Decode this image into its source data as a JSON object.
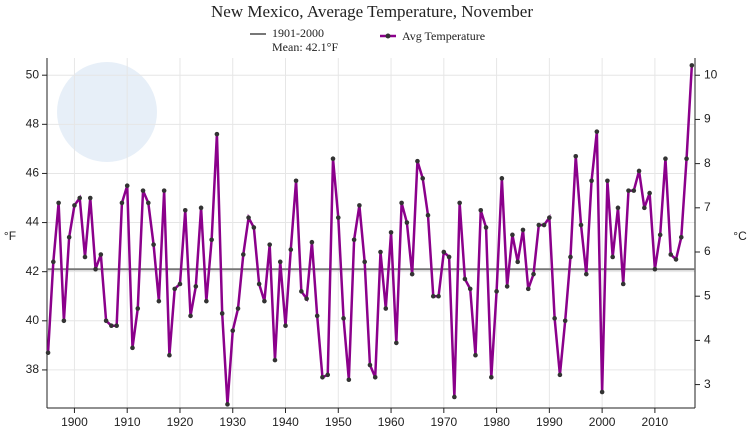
{
  "chart_data": {
    "type": "line",
    "title": "New Mexico, Average Temperature, November",
    "ylabel": "°F",
    "y2label": "°C",
    "x": [
      1895,
      1896,
      1897,
      1898,
      1899,
      1900,
      1901,
      1902,
      1903,
      1904,
      1905,
      1906,
      1907,
      1908,
      1909,
      1910,
      1911,
      1912,
      1913,
      1914,
      1915,
      1916,
      1917,
      1918,
      1919,
      1920,
      1921,
      1922,
      1923,
      1924,
      1925,
      1926,
      1927,
      1928,
      1929,
      1930,
      1931,
      1932,
      1933,
      1934,
      1935,
      1936,
      1937,
      1938,
      1939,
      1940,
      1941,
      1942,
      1943,
      1944,
      1945,
      1946,
      1947,
      1948,
      1949,
      1950,
      1951,
      1952,
      1953,
      1954,
      1955,
      1956,
      1957,
      1958,
      1959,
      1960,
      1961,
      1962,
      1963,
      1964,
      1965,
      1966,
      1967,
      1968,
      1969,
      1970,
      1971,
      1972,
      1973,
      1974,
      1975,
      1976,
      1977,
      1978,
      1979,
      1980,
      1981,
      1982,
      1983,
      1984,
      1985,
      1986,
      1987,
      1988,
      1989,
      1990,
      1991,
      1992,
      1993,
      1994,
      1995,
      1996,
      1997,
      1998,
      1999,
      2000,
      2001,
      2002,
      2003,
      2004,
      2005,
      2006,
      2007,
      2008,
      2009,
      2010,
      2011,
      2012,
      2013,
      2014,
      2015,
      2016,
      2017
    ],
    "series": [
      {
        "name": "Avg Temperature",
        "color": "#8b008b",
        "values": [
          38.7,
          42.4,
          44.8,
          40.0,
          43.4,
          44.7,
          45.0,
          42.6,
          45.0,
          42.1,
          42.7,
          40.0,
          39.8,
          39.8,
          44.8,
          45.5,
          38.9,
          40.5,
          45.3,
          44.8,
          43.1,
          40.8,
          45.3,
          38.6,
          41.3,
          41.5,
          44.5,
          40.2,
          41.4,
          44.6,
          40.8,
          43.3,
          47.6,
          40.3,
          36.6,
          39.6,
          40.5,
          42.7,
          44.2,
          43.8,
          41.5,
          40.8,
          43.1,
          38.4,
          42.4,
          39.8,
          42.9,
          45.7,
          41.2,
          40.9,
          43.2,
          40.2,
          37.7,
          37.8,
          46.6,
          44.2,
          40.1,
          37.6,
          43.3,
          44.7,
          42.4,
          38.2,
          37.7,
          42.8,
          40.5,
          43.6,
          39.1,
          44.8,
          44.0,
          41.9,
          46.5,
          45.8,
          44.3,
          41.0,
          41.0,
          42.8,
          42.6,
          36.9,
          44.8,
          41.7,
          41.3,
          38.6,
          44.5,
          43.8,
          37.7,
          41.2,
          45.8,
          41.4,
          43.5,
          42.4,
          43.7,
          41.3,
          41.9,
          43.9,
          43.9,
          44.2,
          40.1,
          37.8,
          40.0,
          42.6,
          46.7,
          43.9,
          41.9,
          45.7,
          47.7,
          37.1,
          45.7,
          42.6,
          44.6,
          41.5,
          45.3,
          45.3,
          46.1,
          44.6,
          45.2,
          42.1,
          43.5,
          46.6,
          42.7,
          42.5,
          43.4,
          46.6,
          50.4
        ]
      }
    ],
    "mean": {
      "name": "1901-2000",
      "label": "Mean: 42.1°F",
      "value": 42.1,
      "color": "#777777"
    },
    "xlim": [
      1894.8,
      2017.6
    ],
    "xticks": [
      1900,
      1910,
      1920,
      1930,
      1940,
      1950,
      1960,
      1970,
      1980,
      1990,
      2000,
      2010
    ],
    "ylim": [
      36.45,
      50.7
    ],
    "yticks": [
      38,
      40,
      42,
      44,
      46,
      48,
      50
    ],
    "y2lim": [
      2.47,
      10.39
    ],
    "y2ticks": [
      3,
      4,
      5,
      6,
      7,
      8,
      9,
      10
    ],
    "grid": true
  }
}
